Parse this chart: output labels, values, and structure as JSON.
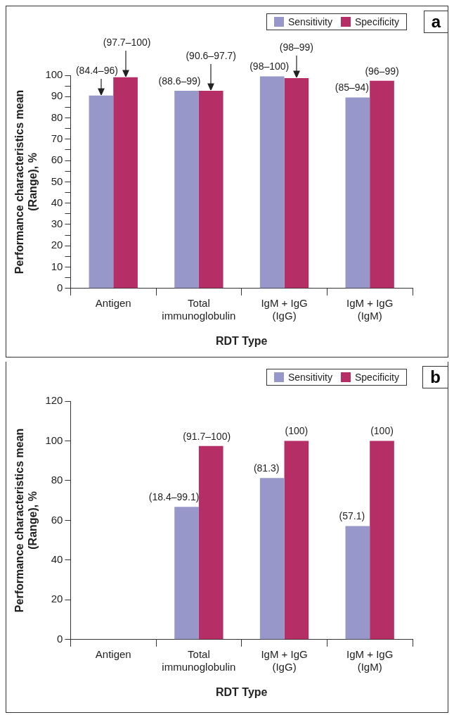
{
  "chart_data": [
    {
      "type": "bar",
      "xlabel": "RDT Type",
      "ylabel": "Performance characteristics mean (Range), %",
      "annotations": [
        "a"
      ],
      "categories": [
        "Antigen",
        "Total immunoglobulin",
        "IgM + IgG (IgG)",
        "IgM + IgG (IgM)"
      ],
      "series": [
        {
          "name": "Sensitivity",
          "color": "#9797c9",
          "values": [
            90.5,
            92.7,
            99.5,
            89.6
          ],
          "value_labels": [
            "(84.4–96)",
            "(88.6–99)",
            "(98–100)",
            "(85–94)"
          ]
        },
        {
          "name": "Specificity",
          "color": "#b52e65",
          "values": [
            99.1,
            92.7,
            98.7,
            97.4
          ],
          "value_labels": [
            "(97.7–100)",
            "(90.6–97.7)",
            "(98–99)",
            "(96–99)"
          ]
        }
      ],
      "ylim": [
        0,
        100
      ],
      "yticks": [
        0,
        {
          "value": 5,
          "label": null
        },
        10,
        {
          "value": 15,
          "label": null
        },
        20,
        {
          "value": 25,
          "label": null
        },
        30,
        {
          "value": 35,
          "label": null
        },
        40,
        {
          "value": 45,
          "label": null
        },
        50,
        {
          "value": 55,
          "label": null
        },
        60,
        {
          "value": 65,
          "label": null
        },
        70,
        {
          "value": 75,
          "label": null
        },
        80,
        {
          "value": 85,
          "label": null
        },
        90,
        {
          "value": 95,
          "label": null
        },
        100
      ],
      "grid": false,
      "legend": "top right"
    },
    {
      "type": "bar",
      "xlabel": "RDT Type",
      "ylabel": "Performance characteristics mean (Range), %",
      "annotations": [
        "b"
      ],
      "categories": [
        "Antigen",
        "Total immunoglobulin",
        "IgM + IgG (IgG)",
        "IgM + IgG (IgM)"
      ],
      "series": [
        {
          "name": "Sensitivity",
          "color": "#9797c9",
          "values": [
            null,
            66.8,
            81.3,
            57.1
          ],
          "value_labels": [
            null,
            "(18.4–99.1)",
            "(81.3)",
            "(57.1)"
          ]
        },
        {
          "name": "Specificity",
          "color": "#b52e65",
          "values": [
            null,
            97.4,
            100,
            100
          ],
          "value_labels": [
            null,
            "(91.7–100)",
            "(100)",
            "(100)"
          ]
        }
      ],
      "ylim": [
        0,
        120
      ],
      "yticks": [
        0,
        20,
        40,
        60,
        80,
        100,
        120
      ],
      "grid": false,
      "legend": "top right"
    }
  ]
}
